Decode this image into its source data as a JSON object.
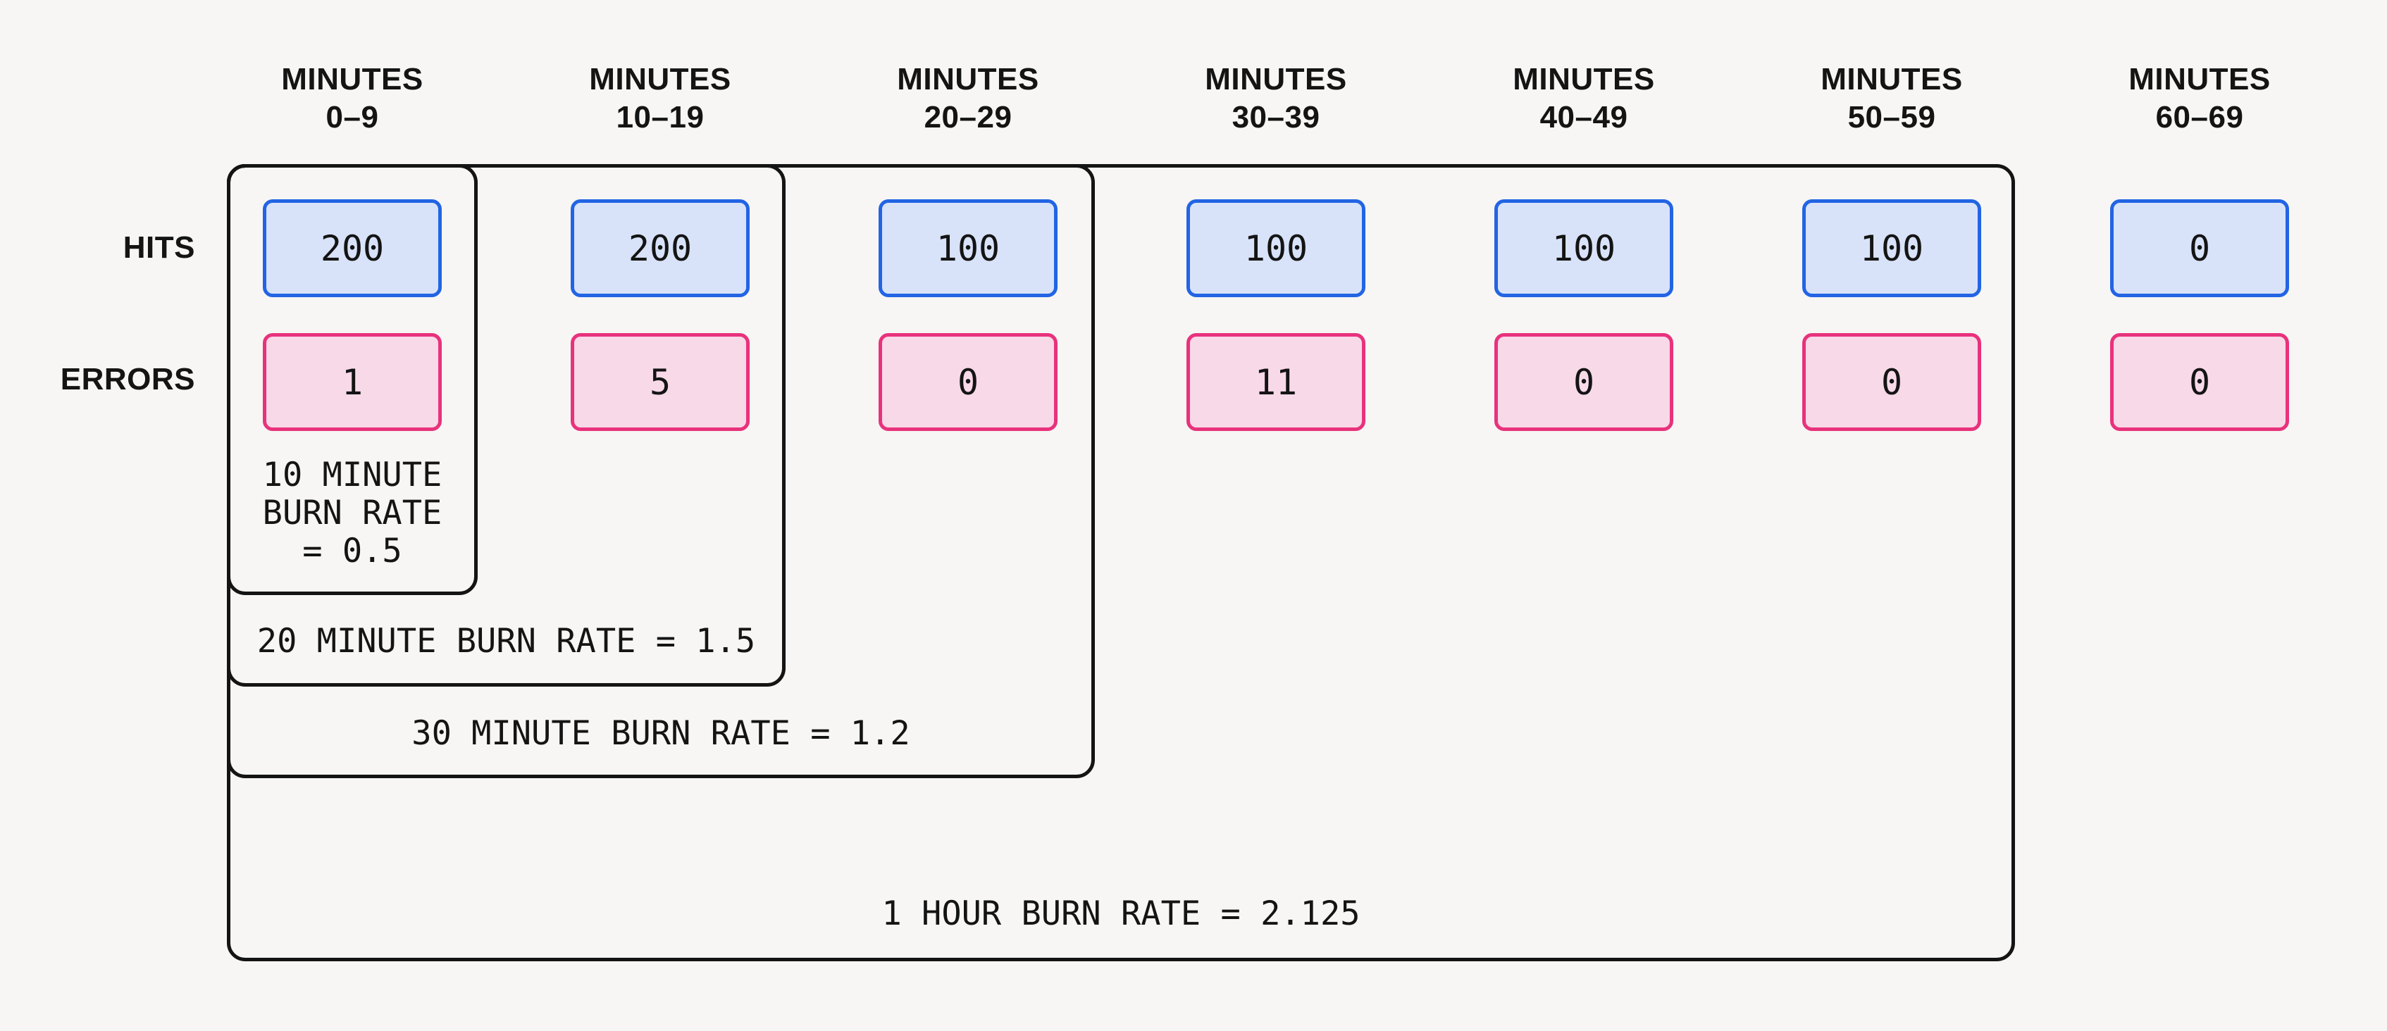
{
  "diagram": {
    "title_semantic": "burn rate time windows",
    "row_labels": {
      "hits": "HITS",
      "errors": "ERRORS"
    },
    "columns": [
      {
        "header_line1": "MINUTES",
        "header_line2": "0–9",
        "hits": "200",
        "errors": "1"
      },
      {
        "header_line1": "MINUTES",
        "header_line2": "10–19",
        "hits": "200",
        "errors": "5"
      },
      {
        "header_line1": "MINUTES",
        "header_line2": "20–29",
        "hits": "100",
        "errors": "0"
      },
      {
        "header_line1": "MINUTES",
        "header_line2": "30–39",
        "hits": "100",
        "errors": "11"
      },
      {
        "header_line1": "MINUTES",
        "header_line2": "40–49",
        "hits": "100",
        "errors": "0"
      },
      {
        "header_line1": "MINUTES",
        "header_line2": "50–59",
        "hits": "100",
        "errors": "0"
      },
      {
        "header_line1": "MINUTES",
        "header_line2": "60–69",
        "hits": "0",
        "errors": "0"
      }
    ],
    "burn_rates": {
      "ten_minute": {
        "label": "10 MINUTE\nBURN RATE\n= 0.5"
      },
      "twenty_minute": {
        "label": "20 MINUTE BURN RATE = 1.5"
      },
      "thirty_minute": {
        "label": "30 MINUTE BURN RATE = 1.2"
      },
      "one_hour": {
        "label": "1 HOUR BURN RATE = 2.125"
      }
    },
    "colors": {
      "background": "#f7f6f4",
      "ink": "#141414",
      "hits_fill": "#d8e3f9",
      "hits_border": "#2264e4",
      "errors_fill": "#f8d9e8",
      "errors_border": "#e8327c"
    }
  }
}
